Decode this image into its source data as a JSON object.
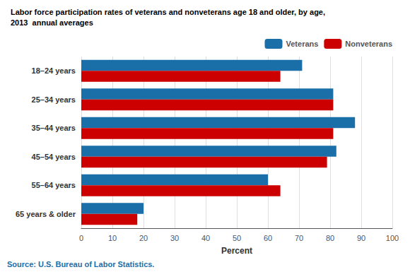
{
  "chart_data": {
    "type": "bar",
    "orientation": "horizontal",
    "title": "Labor force participation rates of veterans and nonveterans age 18 and older, by age,",
    "subtitle": "2013  annual averages",
    "annotations": [
      "Source: U.S. Bureau of Labor Statistics."
    ],
    "categories": [
      "18–24 years",
      "25–34 years",
      "35–44 years",
      "45–54 years",
      "55–64 years",
      "65 years & older"
    ],
    "series": [
      {
        "name": "Veterans",
        "color": "#1B6FA8",
        "values": [
          71,
          81,
          88,
          82,
          60,
          20
        ]
      },
      {
        "name": "Nonveterans",
        "color": "#CC0000",
        "values": [
          64,
          81,
          81,
          79,
          64,
          18
        ]
      }
    ],
    "xlabel": "Percent",
    "xlim": [
      0,
      100
    ],
    "xticks": [
      0,
      10,
      20,
      30,
      40,
      50,
      60,
      70,
      80,
      90,
      100
    ],
    "grid": true,
    "legend": "upper right"
  }
}
